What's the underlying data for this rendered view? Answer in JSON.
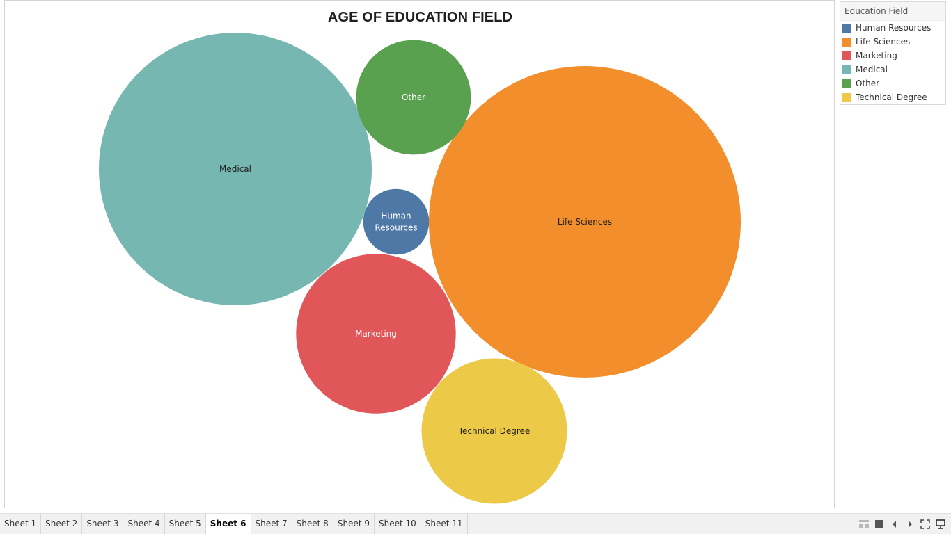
{
  "chart_data": {
    "type": "bubble",
    "title": "AGE OF EDUCATION FIELD",
    "legend_title": "Education Field",
    "legend_position": "top-right",
    "series": [
      {
        "name": "Human Resources",
        "label_lines": [
          "Human",
          "Resources"
        ],
        "value": 27,
        "color": "#4e79a7",
        "label_color": "#ffffff"
      },
      {
        "name": "Life Sciences",
        "label_lines": [
          "Life Sciences"
        ],
        "value": 606,
        "color": "#f28e2b",
        "label_color": "#1f1f1f"
      },
      {
        "name": "Marketing",
        "label_lines": [
          "Marketing"
        ],
        "value": 159,
        "color": "#e15759",
        "label_color": "#ffffff"
      },
      {
        "name": "Medical",
        "label_lines": [
          "Medical"
        ],
        "value": 464,
        "color": "#76b7b2",
        "label_color": "#1f1f1f"
      },
      {
        "name": "Other",
        "label_lines": [
          "Other"
        ],
        "value": 82,
        "color": "#59a14f",
        "label_color": "#ffffff"
      },
      {
        "name": "Technical Degree",
        "label_lines": [
          "Technical Degree"
        ],
        "value": 132,
        "color": "#edc948",
        "label_color": "#1f1f1f"
      }
    ]
  },
  "tabs": [
    {
      "label": "Sheet 1",
      "active": false
    },
    {
      "label": "Sheet 2",
      "active": false
    },
    {
      "label": "Sheet 3",
      "active": false
    },
    {
      "label": "Sheet 4",
      "active": false
    },
    {
      "label": "Sheet 5",
      "active": false
    },
    {
      "label": "Sheet 6",
      "active": true
    },
    {
      "label": "Sheet 7",
      "active": false
    },
    {
      "label": "Sheet 8",
      "active": false
    },
    {
      "label": "Sheet 9",
      "active": false
    },
    {
      "label": "Sheet 10",
      "active": false
    },
    {
      "label": "Sheet 11",
      "active": false
    }
  ],
  "controls": [
    {
      "name": "show-filmstrip-icon"
    },
    {
      "name": "show-tabs-icon"
    },
    {
      "name": "previous-sheet-icon"
    },
    {
      "name": "next-sheet-icon"
    },
    {
      "name": "fullscreen-icon"
    },
    {
      "name": "presentation-mode-icon"
    }
  ]
}
